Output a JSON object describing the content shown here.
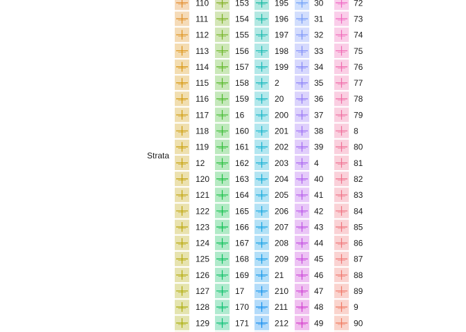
{
  "chart_data": {
    "type": "line",
    "legend": {
      "title": "Strata",
      "placement": "left",
      "columns": [
        {
          "labels": [
            "110",
            "111",
            "112",
            "113",
            "114",
            "115",
            "116",
            "117",
            "118",
            "119",
            "12",
            "120",
            "121",
            "122",
            "123",
            "124",
            "125",
            "126",
            "127",
            "128",
            "129"
          ],
          "colors": [
            "#e38b2a",
            "#e08e22",
            "#de9018",
            "#dc9211",
            "#d9940c",
            "#d6960a",
            "#d39809",
            "#cf9a08",
            "#cc9c07",
            "#c99e07",
            "#c6a007",
            "#c3a107",
            "#c0a307",
            "#bda407",
            "#bba606",
            "#b8a706",
            "#b5a806",
            "#b2a906",
            "#afaa06",
            "#acab06",
            "#a9ac06"
          ]
        },
        {
          "labels": [
            "153",
            "154",
            "155",
            "156",
            "157",
            "158",
            "159",
            "16",
            "160",
            "161",
            "162",
            "163",
            "164",
            "165",
            "166",
            "167",
            "168",
            "169",
            "17",
            "170",
            "171"
          ],
          "colors": [
            "#7fae1e",
            "#78b01f",
            "#70b220",
            "#67b422",
            "#5eb624",
            "#55b727",
            "#4cb92a",
            "#42ba2e",
            "#38bb32",
            "#2ebc36",
            "#25bd3b",
            "#1dbe40",
            "#16bf45",
            "#10bf4a",
            "#0cbf50",
            "#0abf56",
            "#09bf5c",
            "#09bf62",
            "#09bf68",
            "#09bf6e",
            "#09bf74"
          ]
        },
        {
          "labels": [
            "195",
            "196",
            "197",
            "198",
            "199",
            "2",
            "20",
            "200",
            "201",
            "202",
            "203",
            "204",
            "205",
            "206",
            "207",
            "208",
            "209",
            "21",
            "210",
            "211",
            "212"
          ],
          "colors": [
            "#12b8a0",
            "#12b8a6",
            "#12b8ac",
            "#12b8b1",
            "#12b8b7",
            "#12b7bc",
            "#12b6c1",
            "#12b5c6",
            "#12b3cb",
            "#12b1d0",
            "#12afd4",
            "#12acd8",
            "#12a9dc",
            "#12a6e0",
            "#12a3e3",
            "#129fe6",
            "#129be8",
            "#1297ea",
            "#1293ec",
            "#128fee",
            "#128bef"
          ]
        },
        {
          "labels": [
            "30",
            "31",
            "32",
            "33",
            "34",
            "35",
            "36",
            "37",
            "38",
            "39",
            "4",
            "40",
            "41",
            "42",
            "43",
            "44",
            "45",
            "46",
            "47",
            "48",
            "49"
          ],
          "colors": [
            "#6c9ef8",
            "#7298f8",
            "#7892f8",
            "#7e8cf8",
            "#8486f8",
            "#8a80f8",
            "#9079f7",
            "#9673f6",
            "#9c6df5",
            "#a267f3",
            "#a862f1",
            "#ae5cee",
            "#b357eb",
            "#b852e8",
            "#bd4de4",
            "#c249e0",
            "#c645dc",
            "#ca41d8",
            "#ce3ed3",
            "#d13bcf",
            "#d439ca"
          ]
        },
        {
          "labels": [
            "72",
            "73",
            "74",
            "75",
            "76",
            "77",
            "78",
            "79",
            "8",
            "80",
            "81",
            "82",
            "83",
            "84",
            "85",
            "86",
            "87",
            "88",
            "89",
            "9",
            "90"
          ],
          "colors": [
            "#f066c2",
            "#f066bd",
            "#f067b8",
            "#f068b3",
            "#f069ae",
            "#f06aa9",
            "#f06ba4",
            "#f06c9f",
            "#f06d9a",
            "#f06e95",
            "#f06f90",
            "#f0708b",
            "#f07186",
            "#f07281",
            "#f0737c",
            "#f07477",
            "#f07572",
            "#f0766d",
            "#f07768",
            "#f07863",
            "#f0795e"
          ]
        }
      ]
    }
  }
}
